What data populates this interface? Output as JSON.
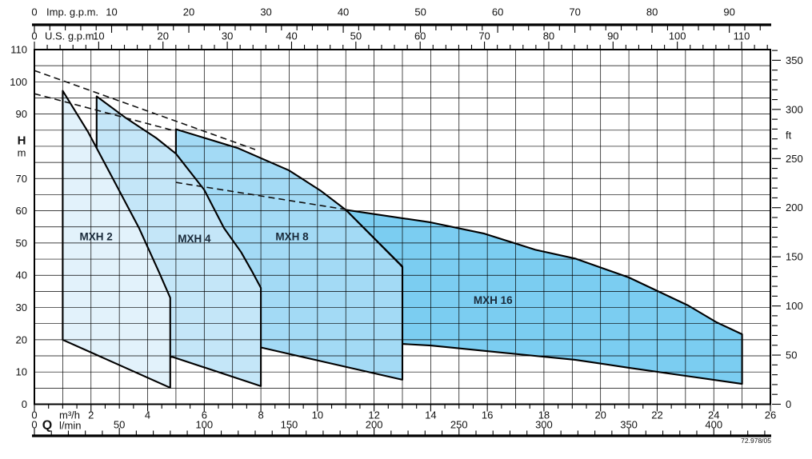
{
  "figure": {
    "note": "72.978/05"
  },
  "colors": {
    "grid": "#2b2b2b",
    "axis": "#000000",
    "tick_label": "#111111",
    "region_label": "#1a2a3a",
    "dashed_line": "#111111"
  },
  "chart_data": {
    "type": "area",
    "description": "Pump operating range chart: head H (m / ft) versus flow Q (m3/h, l/min, Imp g.p.m., U.S. g.p.m.) with four overlapping shaded operating regions",
    "x_axes": {
      "imp_gpm": {
        "label": "Imp. g.p.m.",
        "major_ticks": [
          0,
          10,
          20,
          30,
          40,
          50,
          60,
          70,
          80,
          90
        ],
        "minor_step": 2
      },
      "us_gpm": {
        "label": "U.S. g.p.m.",
        "major_ticks": [
          0,
          10,
          20,
          30,
          40,
          50,
          60,
          70,
          80,
          90,
          100,
          110
        ],
        "minor_step": 2
      },
      "m3h": {
        "label": "m³/h",
        "major_ticks": [
          0,
          2,
          4,
          6,
          8,
          10,
          12,
          14,
          16,
          18,
          20,
          22,
          24,
          26
        ],
        "minor_step": 0.5,
        "range": [
          0,
          26
        ]
      },
      "lmin": {
        "label": "l/min",
        "quantity_label": "Q",
        "major_ticks": [
          0,
          50,
          100,
          150,
          200,
          250,
          300,
          350,
          400
        ],
        "minor_step": 10
      }
    },
    "y_axes": {
      "h_m": {
        "label": "H",
        "unit": "m",
        "major_tick_labels": [
          0,
          10,
          20,
          30,
          40,
          50,
          60,
          70,
          90,
          100,
          110
        ],
        "grid_step": 5,
        "range": [
          0,
          110
        ]
      },
      "ft": {
        "label": "ft",
        "major_ticks": [
          0,
          50,
          100,
          150,
          200,
          250,
          300,
          350
        ],
        "minor_step": 10
      }
    },
    "grid": {
      "vertical_step_m3h": 1,
      "horizontal_step_m": 5
    },
    "regions": [
      {
        "name": "MXH 16",
        "fill": "#7bcdf1",
        "label_pos": [
          16.2,
          32.3
        ],
        "points": [
          [
            11.0,
            60.3
          ],
          [
            14.0,
            56.4
          ],
          [
            15.9,
            52.9
          ],
          [
            17.7,
            47.9
          ],
          [
            19.1,
            45.2
          ],
          [
            21.0,
            39.3
          ],
          [
            23.1,
            30.6
          ],
          [
            24.1,
            25.4
          ],
          [
            25.0,
            21.7
          ],
          [
            25.0,
            6.3
          ],
          [
            23.0,
            8.8
          ],
          [
            21.0,
            11.3
          ],
          [
            19.1,
            13.8
          ],
          [
            17.1,
            15.5
          ],
          [
            14.0,
            18.2
          ],
          [
            13.0,
            18.7
          ],
          [
            13.0,
            42.7
          ]
        ]
      },
      {
        "name": "MXH 8",
        "fill": "#a3daf5",
        "label_pos": [
          9.1,
          51.9
        ],
        "points": [
          [
            5.0,
            85.3
          ],
          [
            7.2,
            79.4
          ],
          [
            9.0,
            72.5
          ],
          [
            10.1,
            66.3
          ],
          [
            11.0,
            60.3
          ],
          [
            12.9,
            43.5
          ],
          [
            13.0,
            42.5
          ],
          [
            13.0,
            7.6
          ],
          [
            8.05,
            17.5
          ],
          [
            5.0,
            23.5
          ]
        ]
      },
      {
        "name": "MXH 4",
        "fill": "#c4e6f8",
        "label_pos": [
          5.65,
          51.3
        ],
        "points": [
          [
            2.2,
            95.5
          ],
          [
            3.2,
            89.0
          ],
          [
            4.3,
            82.6
          ],
          [
            5.0,
            77.7
          ],
          [
            6.0,
            66.5
          ],
          [
            6.7,
            54.6
          ],
          [
            7.3,
            47.2
          ],
          [
            7.7,
            41.0
          ],
          [
            8.0,
            36.1
          ],
          [
            8.0,
            5.6
          ],
          [
            4.9,
            14.6
          ],
          [
            2.2,
            16.5
          ]
        ]
      },
      {
        "name": "MXH 2",
        "fill": "#e2f2fb",
        "label_pos": [
          2.18,
          52.0
        ],
        "points": [
          [
            1.0,
            97.2
          ],
          [
            1.9,
            84.4
          ],
          [
            2.8,
            69.5
          ],
          [
            3.7,
            54.6
          ],
          [
            4.4,
            41.0
          ],
          [
            4.8,
            33.0
          ],
          [
            4.8,
            5.1
          ],
          [
            1.0,
            20.0
          ]
        ]
      }
    ],
    "dashed_lines": [
      {
        "name": "upper-limit-dashed-1",
        "points": [
          [
            0,
            103.5
          ],
          [
            7.8,
            79.0
          ]
        ]
      },
      {
        "name": "upper-limit-dashed-2",
        "points": [
          [
            0,
            96.3
          ],
          [
            5.0,
            84.7
          ]
        ]
      },
      {
        "name": "mid-limit-dashed",
        "points": [
          [
            5.0,
            68.8
          ],
          [
            11.0,
            60.4
          ]
        ]
      }
    ]
  }
}
